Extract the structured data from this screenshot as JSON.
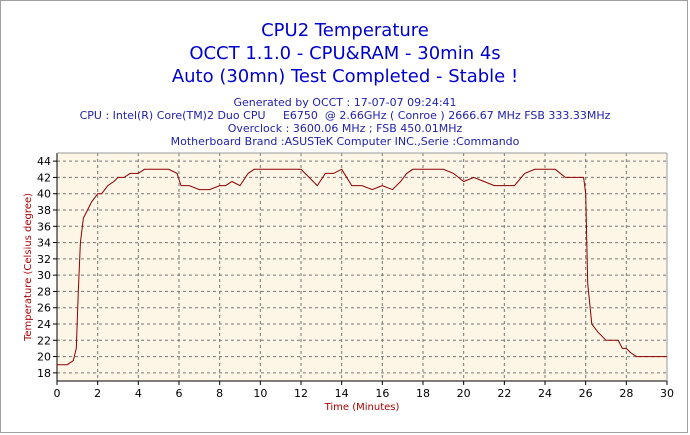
{
  "chart_data": {
    "type": "line",
    "title": "CPU2 Temperature",
    "subtitle": "OCCT 1.1.0 - CPU&RAM - 30min 4s",
    "status": "Auto (30mn) Test Completed - Stable !",
    "info_lines": [
      "Generated by OCCT : 17-07-07 09:24:41",
      "CPU : Intel(R) Core(TM)2 Duo CPU     E6750  @ 2.66GHz ( Conroe ) 2666.67 MHz FSB 333.33MHz",
      "Overclock : 3600.06 MHz ; FSB 450.01MHz",
      "Motherboard Brand :ASUSTeK Computer INC.,Serie :Commando"
    ],
    "xlabel": "Time (Minutes)",
    "ylabel": "Temperature (Celsius degree)",
    "xlim": [
      0,
      30
    ],
    "ylim": [
      17,
      45
    ],
    "x_ticks": [
      0,
      2,
      4,
      6,
      8,
      10,
      12,
      14,
      16,
      18,
      20,
      22,
      24,
      26,
      28,
      30
    ],
    "y_ticks": [
      18,
      20,
      22,
      24,
      26,
      28,
      30,
      32,
      34,
      36,
      38,
      40,
      42,
      44
    ],
    "grid": true,
    "colors": {
      "line": "#8b0000",
      "plot_background": "#fdf5e6",
      "grid": "#777777",
      "title": "#0000cc",
      "info": "#2222aa",
      "axis_title": "#aa0000"
    },
    "series": [
      {
        "x": [
          0,
          0.5,
          0.8,
          0.95,
          1.05,
          1.15,
          1.3,
          1.5,
          1.7,
          2.0,
          2.2,
          2.5,
          2.8,
          3.0,
          3.3,
          3.6,
          4.0,
          4.3,
          4.6,
          5.0,
          5.5,
          5.9,
          6.1,
          6.5,
          7.0,
          7.5,
          8.0,
          8.3,
          8.6,
          9.0,
          9.4,
          9.7,
          10.0,
          10.5,
          11.0,
          11.5,
          12.0,
          12.4,
          12.8,
          13.2,
          13.6,
          14.0,
          14.5,
          15.0,
          15.5,
          16.0,
          16.5,
          16.9,
          17.2,
          17.5,
          18.0,
          18.5,
          19.0,
          19.5,
          20.0,
          20.5,
          21.0,
          21.5,
          22.0,
          22.5,
          23.0,
          23.5,
          24.0,
          24.5,
          25.0,
          25.5,
          25.9,
          26.0,
          26.1,
          26.3,
          26.6,
          27.0,
          27.3,
          27.6,
          27.8,
          28.0,
          28.2,
          28.5,
          28.8,
          29.0,
          29.3,
          29.6,
          29.8,
          30.0
        ],
        "y": [
          19,
          19,
          19.5,
          21,
          28,
          34,
          37,
          38,
          39,
          40,
          40,
          41,
          41.5,
          42,
          42,
          42.5,
          42.5,
          43,
          43,
          43,
          43,
          42.5,
          41,
          41,
          40.5,
          40.5,
          41,
          41,
          41.5,
          41,
          42.5,
          43,
          43,
          43,
          43,
          43,
          43,
          42,
          41,
          42.5,
          42.5,
          43,
          41,
          41,
          40.5,
          41,
          40.5,
          41.5,
          42.5,
          43,
          43,
          43,
          43,
          42.5,
          41.5,
          42,
          41.5,
          41,
          41,
          41,
          42.5,
          43,
          43,
          43,
          42,
          42,
          42,
          40,
          29,
          24,
          23,
          22,
          22,
          22,
          21,
          21,
          20.5,
          20,
          20,
          20,
          20,
          20,
          20,
          20
        ]
      }
    ]
  }
}
